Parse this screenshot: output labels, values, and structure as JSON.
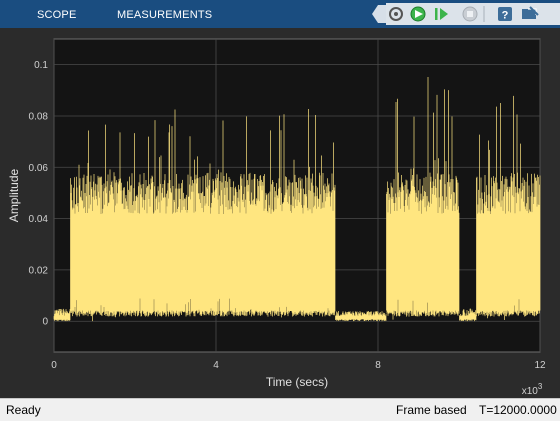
{
  "toolstrip": {
    "tabs": [
      {
        "label": "SCOPE"
      },
      {
        "label": "MEASUREMENTS"
      }
    ],
    "icons": [
      "settings-icon",
      "run-icon",
      "step-forward-icon",
      "stop-icon",
      "help-icon",
      "undock-icon"
    ],
    "colors": {
      "background": "#1a4d80",
      "run": "#3cb44b"
    }
  },
  "status": {
    "left": "Ready",
    "mode": "Frame based",
    "time": "T=12000.0000"
  },
  "chart_data": {
    "type": "line",
    "title": "",
    "xlabel": "Time (secs)",
    "ylabel": "Amplitude",
    "x_exponent_label": "x10",
    "x_exponent_power": "3",
    "xlim": [
      0,
      12
    ],
    "ylim": [
      -0.012,
      0.11
    ],
    "xticks": [
      0,
      4,
      8,
      12
    ],
    "yticks": [
      0,
      0.02,
      0.04,
      0.06,
      0.08,
      0.1
    ],
    "xtick_labels": [
      "0",
      "4",
      "8",
      "12"
    ],
    "ytick_labels": [
      "0",
      "0.02",
      "0.04",
      "0.06",
      "0.08",
      "0.1"
    ],
    "grid": true,
    "line_color": "#ffe680",
    "background": "#141414",
    "noise_floor": 0.002,
    "segments": [
      {
        "x_start": 0.0,
        "x_end": 0.4,
        "level": "quiet",
        "peak": 0.005
      },
      {
        "x_start": 0.4,
        "x_end": 6.95,
        "level": "active",
        "upper_max": 0.058,
        "lower_min": 0.003,
        "peak": 0.085
      },
      {
        "x_start": 6.95,
        "x_end": 8.2,
        "level": "quiet",
        "peak": 0.004
      },
      {
        "x_start": 8.2,
        "x_end": 10.0,
        "level": "active",
        "upper_max": 0.058,
        "lower_min": 0.003,
        "peak": 0.096
      },
      {
        "x_start": 10.0,
        "x_end": 10.42,
        "level": "quiet",
        "peak": 0.005
      },
      {
        "x_start": 10.42,
        "x_end": 12.0,
        "level": "active",
        "upper_max": 0.058,
        "lower_min": 0.003,
        "peak": 0.09
      }
    ]
  }
}
